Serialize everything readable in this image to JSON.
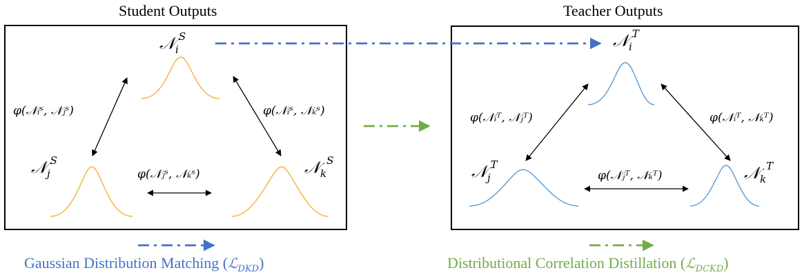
{
  "titles": {
    "student": "Student Outputs",
    "teacher": "Teacher Outputs"
  },
  "nodes": {
    "student": {
      "i": {
        "base": "𝒩",
        "sub": "i",
        "sup": "S"
      },
      "j": {
        "base": "𝒩",
        "sub": "j",
        "sup": "S"
      },
      "k": {
        "base": "𝒩",
        "sub": "k",
        "sup": "S"
      }
    },
    "teacher": {
      "i": {
        "base": "𝒩",
        "sub": "i",
        "sup": "T"
      },
      "j": {
        "base": "𝒩",
        "sub": "j",
        "sup": "T"
      },
      "k": {
        "base": "𝒩",
        "sub": "k",
        "sup": "T"
      }
    }
  },
  "relations": {
    "student_ij": "φ(𝒩ᵢˢ, 𝒩ⱼˢ)",
    "student_ik": "φ(𝒩ᵢˢ, 𝒩ₖˢ)",
    "student_jk": "φ(𝒩ⱼˢ, 𝒩ₖˢ)",
    "teacher_ij": "φ(𝒩ᵢᵀ, 𝒩ⱼᵀ)",
    "teacher_ik": "φ(𝒩ᵢᵀ, 𝒩ₖᵀ)",
    "teacher_jk": "φ(𝒩ⱼᵀ, 𝒩ₖᵀ)"
  },
  "legend": {
    "dkd_text": "Gaussian Distribution Matching (",
    "dkd_loss": "ℒ",
    "dkd_sub": "DKD",
    "dckd_text": "Distributional Correlation Distillation (",
    "dckd_loss": "ℒ",
    "dckd_sub": "DCKD",
    "close": ")"
  },
  "colors": {
    "student_curve": "#F5B335",
    "teacher_curve": "#5B9BD5",
    "dkd_arrow": "#4472C4",
    "dckd_arrow": "#70AD47",
    "black": "#000000"
  }
}
